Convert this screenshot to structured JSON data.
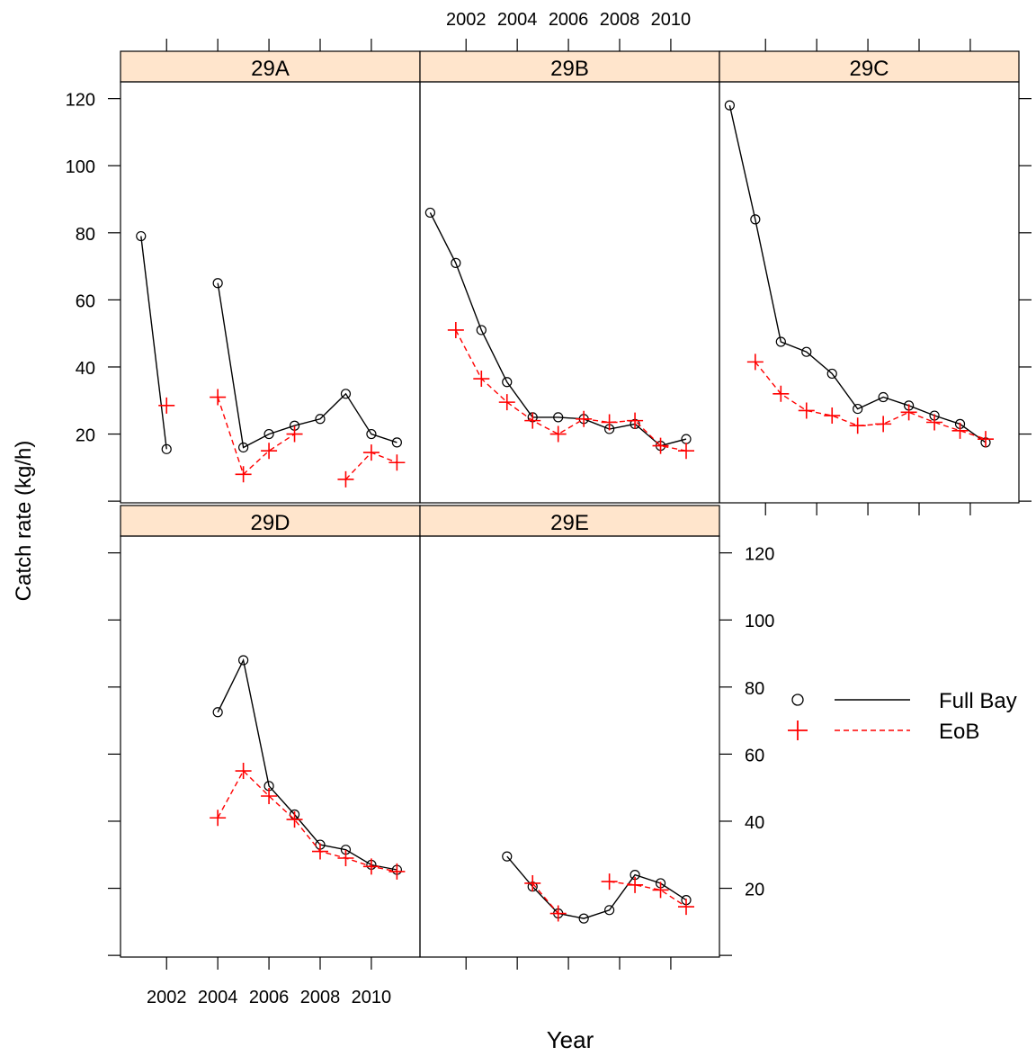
{
  "chart_data": {
    "type": "line",
    "xlabel": "Year",
    "ylabel": "Catch rate (kg/h)",
    "xlim": [
      2000.2,
      2011.9
    ],
    "ylim": [
      -0.5,
      125
    ],
    "x_ticks": [
      2002,
      2004,
      2006,
      2008,
      2010
    ],
    "y_ticks": [
      20,
      40,
      60,
      80,
      100,
      120
    ],
    "x_tick_labels": [
      "2002",
      "2004",
      "2006",
      "2008",
      "2010"
    ],
    "y_tick_labels": [
      "20",
      "40",
      "60",
      "80",
      "100",
      "120"
    ],
    "legend": {
      "position": "right",
      "items": [
        {
          "label": "Full Bay",
          "marker": "circle",
          "line": "solid",
          "color": "#000000"
        },
        {
          "label": "EoB",
          "marker": "plus",
          "line": "dashed",
          "color": "#ff0000"
        }
      ]
    },
    "strip_color": "#ffe5cc",
    "panels": [
      {
        "name": "29A",
        "series": [
          {
            "name": "Full Bay",
            "points": [
              [
                2001,
                79
              ],
              [
                2002,
                15.5
              ],
              [
                2004,
                65
              ],
              [
                2005,
                16
              ],
              [
                2006,
                20
              ],
              [
                2007,
                22.5
              ],
              [
                2008,
                24.5
              ],
              [
                2009,
                32
              ],
              [
                2010,
                20
              ],
              [
                2011,
                17.5
              ]
            ],
            "segments": [
              [
                [
                  2001,
                  79
                ],
                [
                  2002,
                  15.5
                ]
              ],
              [
                [
                  2004,
                  65
                ],
                [
                  2005,
                  16
                ],
                [
                  2006,
                  20
                ],
                [
                  2007,
                  22.5
                ],
                [
                  2008,
                  24.5
                ],
                [
                  2009,
                  32
                ],
                [
                  2010,
                  20
                ],
                [
                  2011,
                  17.5
                ]
              ]
            ]
          },
          {
            "name": "EoB",
            "points": [
              [
                2002,
                28.5
              ],
              [
                2004,
                31
              ],
              [
                2005,
                8
              ],
              [
                2006,
                15
              ],
              [
                2007,
                20
              ],
              [
                2009,
                6.5
              ],
              [
                2010,
                14.5
              ],
              [
                2011,
                11.5
              ]
            ],
            "segments": [
              [
                [
                  2004,
                  31
                ],
                [
                  2005,
                  8
                ],
                [
                  2006,
                  15
                ],
                [
                  2007,
                  20
                ]
              ],
              [
                [
                  2009,
                  6.5
                ],
                [
                  2010,
                  14.5
                ],
                [
                  2011,
                  11.5
                ]
              ]
            ]
          }
        ]
      },
      {
        "name": "29B",
        "series": [
          {
            "name": "Full Bay",
            "points": [
              [
                2000.6,
                86
              ],
              [
                2001.6,
                71
              ],
              [
                2002.6,
                51
              ],
              [
                2003.6,
                35.5
              ],
              [
                2004.6,
                25
              ],
              [
                2005.6,
                25
              ],
              [
                2006.6,
                24.5
              ],
              [
                2007.6,
                21.5
              ],
              [
                2008.6,
                23
              ],
              [
                2009.6,
                16.5
              ],
              [
                2010.6,
                18.5
              ]
            ],
            "segments": [
              [
                [
                  2000.6,
                  86
                ],
                [
                  2001.6,
                  71
                ],
                [
                  2002.6,
                  51
                ],
                [
                  2003.6,
                  35.5
                ],
                [
                  2004.6,
                  25
                ],
                [
                  2005.6,
                  25
                ],
                [
                  2006.6,
                  24.5
                ],
                [
                  2007.6,
                  21.5
                ],
                [
                  2008.6,
                  23
                ],
                [
                  2009.6,
                  16.5
                ],
                [
                  2010.6,
                  18.5
                ]
              ]
            ]
          },
          {
            "name": "EoB",
            "points": [
              [
                2001.6,
                51
              ],
              [
                2002.6,
                36.5
              ],
              [
                2003.6,
                29.5
              ],
              [
                2004.6,
                24
              ],
              [
                2005.6,
                20
              ],
              [
                2006.6,
                24.5
              ],
              [
                2007.6,
                23.5
              ],
              [
                2008.6,
                24
              ],
              [
                2009.6,
                16.5
              ],
              [
                2010.6,
                15
              ]
            ],
            "segments": [
              [
                [
                  2001.6,
                  51
                ],
                [
                  2002.6,
                  36.5
                ],
                [
                  2003.6,
                  29.5
                ],
                [
                  2004.6,
                  24
                ],
                [
                  2005.6,
                  20
                ],
                [
                  2006.6,
                  24.5
                ],
                [
                  2007.6,
                  23.5
                ],
                [
                  2008.6,
                  24
                ],
                [
                  2009.6,
                  16.5
                ],
                [
                  2010.6,
                  15
                ]
              ]
            ]
          }
        ]
      },
      {
        "name": "29C",
        "series": [
          {
            "name": "Full Bay",
            "points": [
              [
                2000.6,
                118
              ],
              [
                2001.6,
                84
              ],
              [
                2002.6,
                47.5
              ],
              [
                2003.6,
                44.5
              ],
              [
                2004.6,
                38
              ],
              [
                2005.6,
                27.5
              ],
              [
                2006.6,
                31
              ],
              [
                2007.6,
                28.5
              ],
              [
                2008.6,
                25.5
              ],
              [
                2009.6,
                23
              ],
              [
                2010.6,
                17.5
              ]
            ],
            "segments": [
              [
                [
                  2000.6,
                  118
                ],
                [
                  2001.6,
                  84
                ],
                [
                  2002.6,
                  47.5
                ],
                [
                  2003.6,
                  44.5
                ],
                [
                  2004.6,
                  38
                ],
                [
                  2005.6,
                  27.5
                ],
                [
                  2006.6,
                  31
                ],
                [
                  2007.6,
                  28.5
                ],
                [
                  2008.6,
                  25.5
                ],
                [
                  2009.6,
                  23
                ],
                [
                  2010.6,
                  17.5
                ]
              ]
            ]
          },
          {
            "name": "EoB",
            "points": [
              [
                2001.6,
                41.5
              ],
              [
                2002.6,
                32
              ],
              [
                2003.6,
                27
              ],
              [
                2004.6,
                25.5
              ],
              [
                2005.6,
                22.5
              ],
              [
                2006.6,
                23
              ],
              [
                2007.6,
                26.5
              ],
              [
                2008.6,
                23.5
              ],
              [
                2009.6,
                21
              ],
              [
                2010.6,
                18.5
              ]
            ],
            "segments": [
              [
                [
                  2001.6,
                  41.5
                ],
                [
                  2002.6,
                  32
                ],
                [
                  2003.6,
                  27
                ],
                [
                  2004.6,
                  25.5
                ],
                [
                  2005.6,
                  22.5
                ],
                [
                  2006.6,
                  23
                ],
                [
                  2007.6,
                  26.5
                ],
                [
                  2008.6,
                  23.5
                ],
                [
                  2009.6,
                  21
                ],
                [
                  2010.6,
                  18.5
                ]
              ]
            ]
          }
        ]
      },
      {
        "name": "29D",
        "series": [
          {
            "name": "Full Bay",
            "points": [
              [
                2004,
                72.5
              ],
              [
                2005,
                88
              ],
              [
                2006,
                50.5
              ],
              [
                2007,
                42
              ],
              [
                2008,
                33
              ],
              [
                2009,
                31.5
              ],
              [
                2010,
                27
              ],
              [
                2011,
                25.5
              ]
            ],
            "segments": [
              [
                [
                  2004,
                  72.5
                ],
                [
                  2005,
                  88
                ],
                [
                  2006,
                  50.5
                ],
                [
                  2007,
                  42
                ],
                [
                  2008,
                  33
                ],
                [
                  2009,
                  31.5
                ],
                [
                  2010,
                  27
                ],
                [
                  2011,
                  25.5
                ]
              ]
            ]
          },
          {
            "name": "EoB",
            "points": [
              [
                2004,
                41
              ],
              [
                2005,
                55
              ],
              [
                2006,
                47.5
              ],
              [
                2007,
                40.5
              ],
              [
                2008,
                31
              ],
              [
                2009,
                29
              ],
              [
                2010,
                26.5
              ],
              [
                2011,
                25
              ]
            ],
            "segments": [
              [
                [
                  2004,
                  41
                ],
                [
                  2005,
                  55
                ],
                [
                  2006,
                  47.5
                ],
                [
                  2007,
                  40.5
                ],
                [
                  2008,
                  31
                ],
                [
                  2009,
                  29
                ],
                [
                  2010,
                  26.5
                ],
                [
                  2011,
                  25
                ]
              ]
            ]
          }
        ]
      },
      {
        "name": "29E",
        "series": [
          {
            "name": "Full Bay",
            "points": [
              [
                2003.6,
                29.5
              ],
              [
                2004.6,
                20.5
              ],
              [
                2005.6,
                12.5
              ],
              [
                2006.6,
                11
              ],
              [
                2007.6,
                13.5
              ],
              [
                2008.6,
                24
              ],
              [
                2009.6,
                21.5
              ],
              [
                2010.6,
                16.5
              ]
            ],
            "segments": [
              [
                [
                  2003.6,
                  29.5
                ],
                [
                  2004.6,
                  20.5
                ],
                [
                  2005.6,
                  12.5
                ],
                [
                  2006.6,
                  11
                ],
                [
                  2007.6,
                  13.5
                ],
                [
                  2008.6,
                  24
                ],
                [
                  2009.6,
                  21.5
                ],
                [
                  2010.6,
                  16.5
                ]
              ]
            ]
          },
          {
            "name": "EoB",
            "points": [
              [
                2004.6,
                21.5
              ],
              [
                2005.6,
                12.5
              ],
              [
                2007.6,
                22
              ],
              [
                2008.6,
                21
              ],
              [
                2009.6,
                19.5
              ],
              [
                2010.6,
                14.5
              ]
            ],
            "segments": [
              [
                [
                  2004.6,
                  21.5
                ],
                [
                  2005.6,
                  12.5
                ]
              ],
              [
                [
                  2007.6,
                  22
                ],
                [
                  2008.6,
                  21
                ],
                [
                  2009.6,
                  19.5
                ],
                [
                  2010.6,
                  14.5
                ]
              ]
            ]
          }
        ]
      }
    ]
  }
}
